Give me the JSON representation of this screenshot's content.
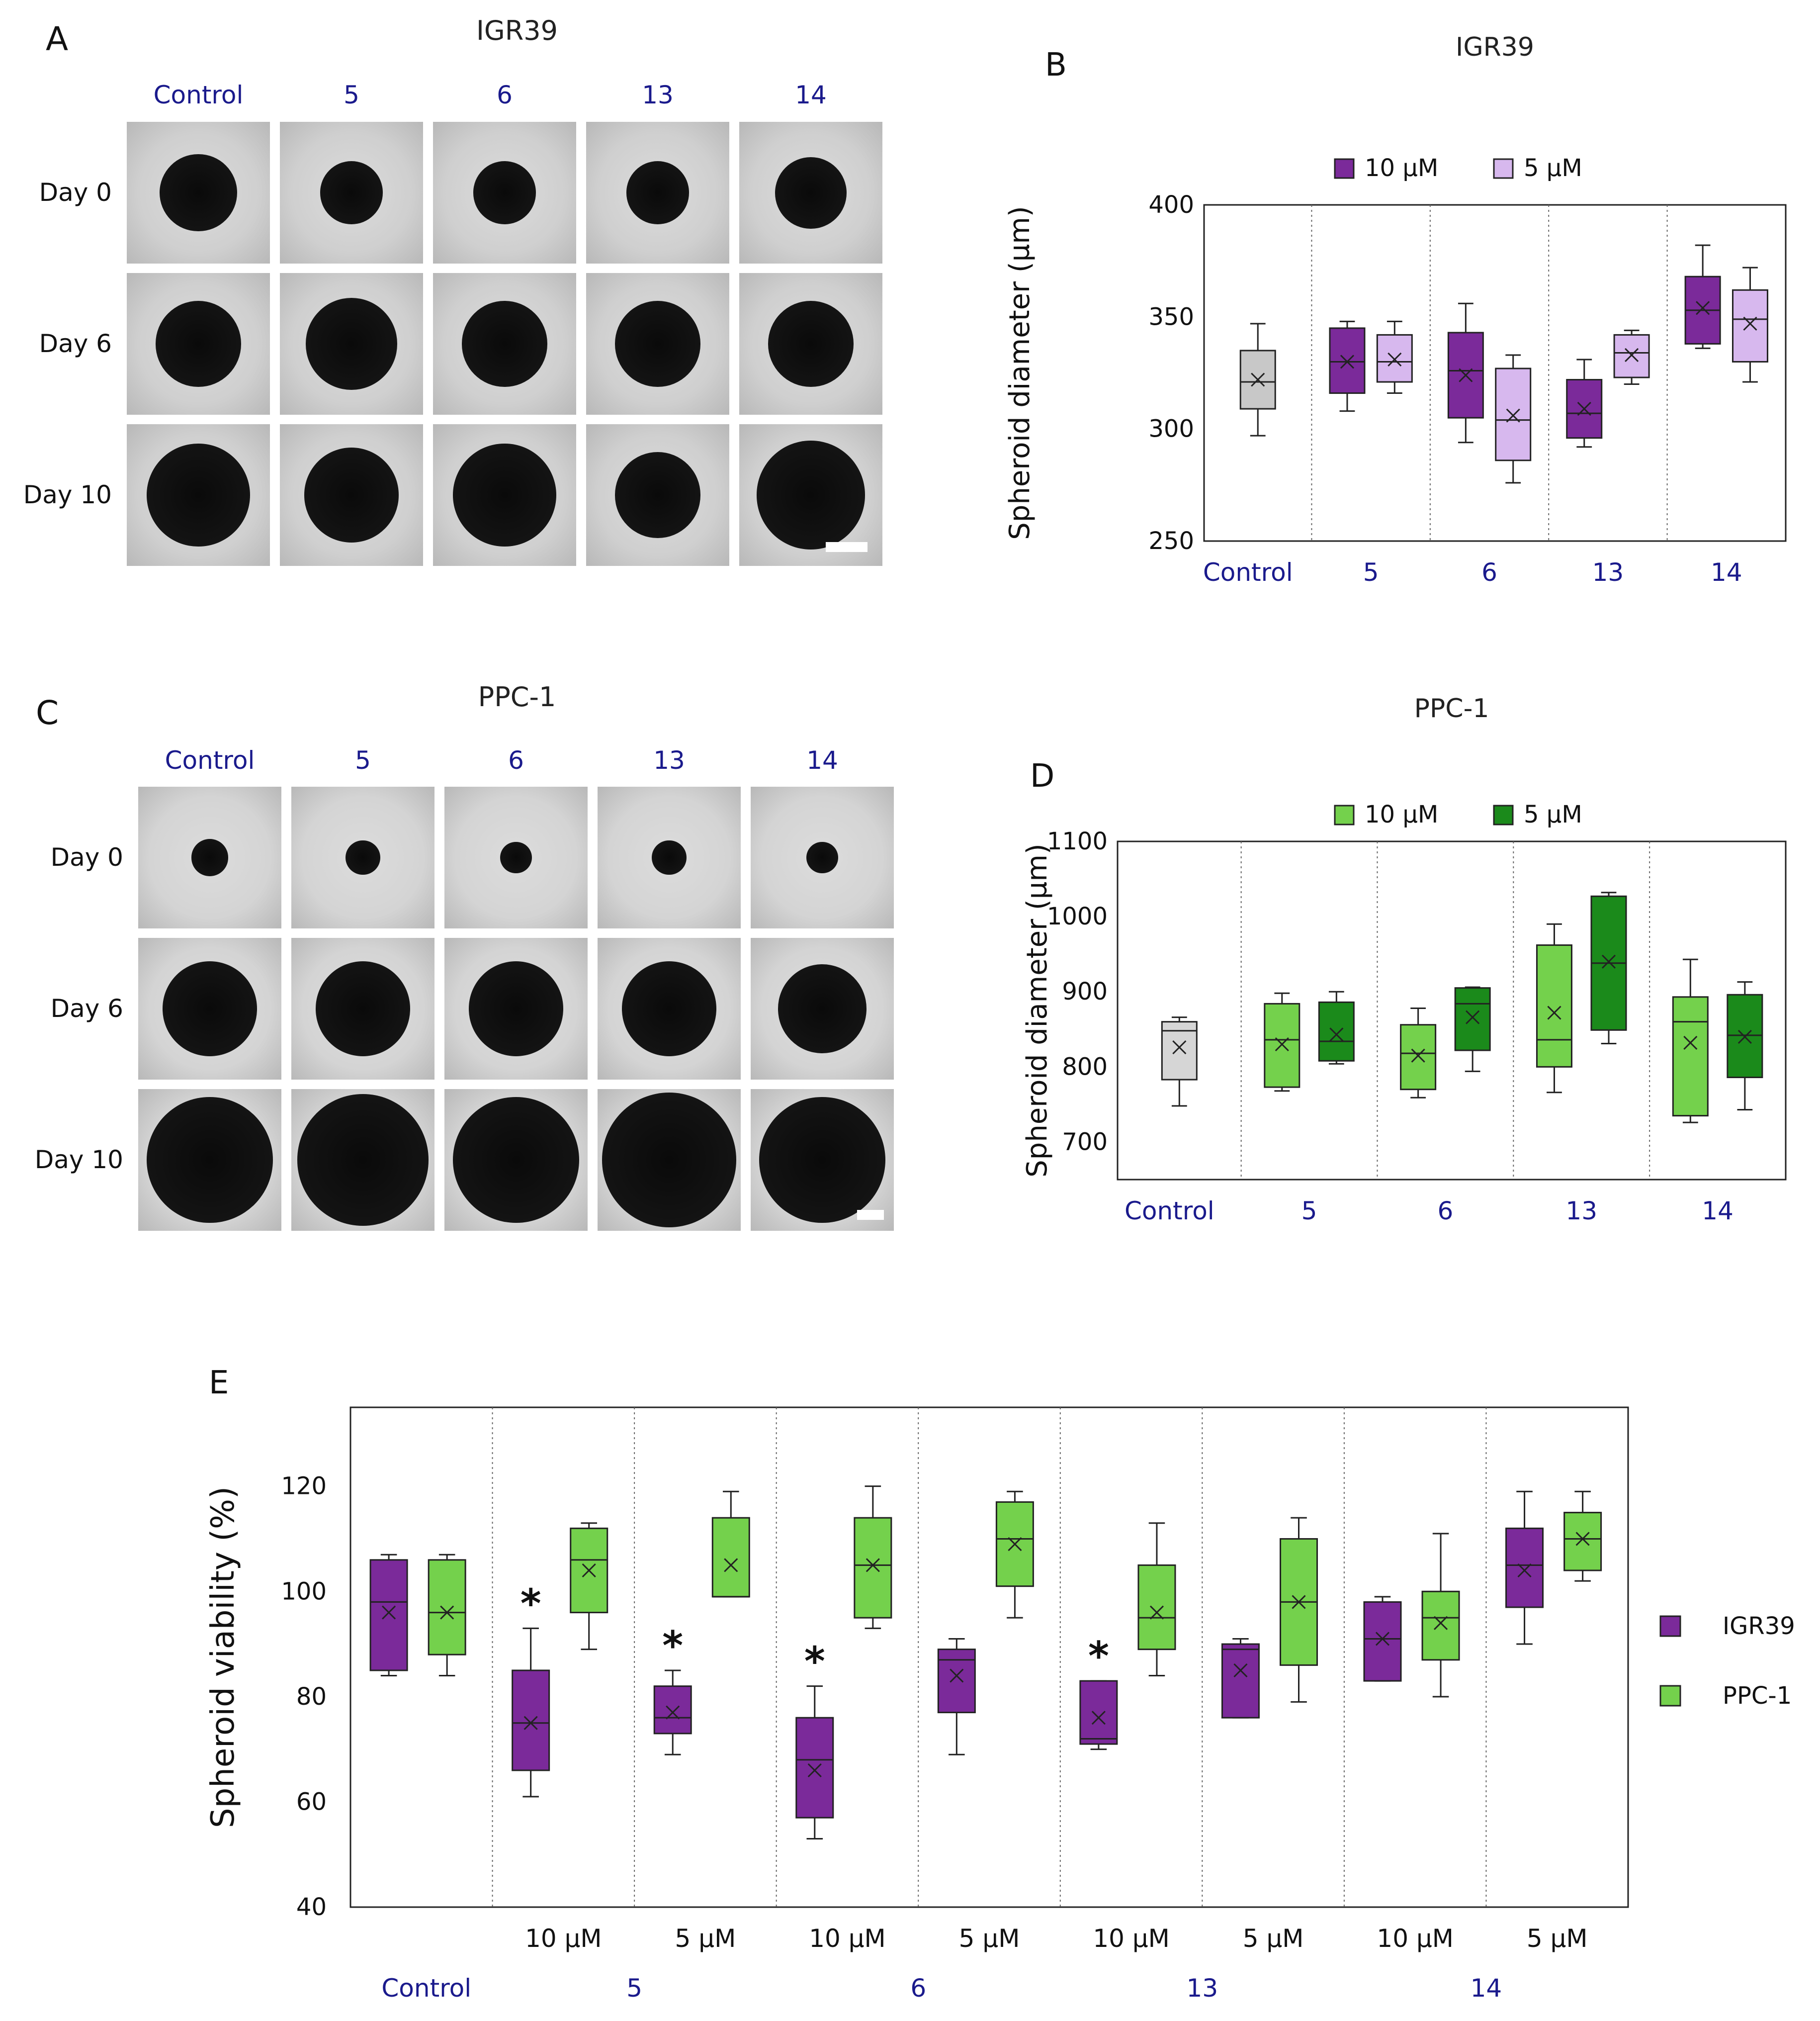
{
  "panelA": {
    "letter": "A",
    "title": "IGR39",
    "columns": [
      "Control",
      "5",
      "6",
      "13",
      "14"
    ],
    "rows": [
      "Day 0",
      "Day 6",
      "Day 10"
    ],
    "blob_radius": [
      [
        0.27,
        0.22,
        0.22,
        0.22,
        0.25
      ],
      [
        0.3,
        0.32,
        0.3,
        0.3,
        0.3
      ],
      [
        0.36,
        0.33,
        0.36,
        0.3,
        0.38
      ]
    ],
    "tile_bg": "#cfcfcf"
  },
  "panelC": {
    "letter": "C",
    "title": "PPC-1",
    "columns": [
      "Control",
      "5",
      "6",
      "13",
      "14"
    ],
    "rows": [
      "Day 0",
      "Day 6",
      "Day 10"
    ],
    "blob_radius": [
      [
        0.13,
        0.12,
        0.11,
        0.12,
        0.11
      ],
      [
        0.33,
        0.33,
        0.33,
        0.33,
        0.31
      ],
      [
        0.44,
        0.46,
        0.44,
        0.47,
        0.44
      ]
    ],
    "tile_bg": "#d4d4d4"
  },
  "chart_data": [
    {
      "id": "B",
      "letter": "B",
      "type": "box",
      "title": "IGR39",
      "ylabel": "Spheroid diameter (µm)",
      "ylim": [
        250,
        400
      ],
      "yticks": [
        250,
        300,
        350,
        400
      ],
      "groups": [
        "Control",
        "5",
        "6",
        "13",
        "14"
      ],
      "legend": [
        {
          "label": "10 µM",
          "color": "#7b2a9a"
        },
        {
          "label": "5 µM",
          "color": "#d7b8ee"
        }
      ],
      "control_color": "#c8c8c8",
      "boxes": [
        {
          "group": "Control",
          "series": "control",
          "min": 297,
          "q1": 309,
          "median": 321,
          "q3": 335,
          "max": 347,
          "mean": 322
        },
        {
          "group": "5",
          "series": "10 µM",
          "min": 308,
          "q1": 316,
          "median": 330,
          "q3": 345,
          "max": 348,
          "mean": 330
        },
        {
          "group": "5",
          "series": "5 µM",
          "min": 316,
          "q1": 321,
          "median": 330,
          "q3": 342,
          "max": 348,
          "mean": 331
        },
        {
          "group": "6",
          "series": "10 µM",
          "min": 294,
          "q1": 305,
          "median": 326,
          "q3": 343,
          "max": 356,
          "mean": 324
        },
        {
          "group": "6",
          "series": "5 µM",
          "min": 276,
          "q1": 286,
          "median": 304,
          "q3": 327,
          "max": 333,
          "mean": 306
        },
        {
          "group": "13",
          "series": "10 µM",
          "min": 292,
          "q1": 296,
          "median": 307,
          "q3": 322,
          "max": 331,
          "mean": 309
        },
        {
          "group": "13",
          "series": "5 µM",
          "min": 320,
          "q1": 323,
          "median": 334,
          "q3": 342,
          "max": 344,
          "mean": 333
        },
        {
          "group": "14",
          "series": "10 µM",
          "min": 336,
          "q1": 338,
          "median": 353,
          "q3": 368,
          "max": 382,
          "mean": 354
        },
        {
          "group": "14",
          "series": "5 µM",
          "min": 321,
          "q1": 330,
          "median": 349,
          "q3": 362,
          "max": 372,
          "mean": 347
        }
      ]
    },
    {
      "id": "D",
      "letter": "D",
      "type": "box",
      "title": "PPC-1",
      "ylabel": "Spheroid diameter (µm)",
      "ylim": [
        650,
        1100
      ],
      "yticks": [
        700,
        800,
        900,
        1000,
        1100
      ],
      "groups": [
        "Control",
        "5",
        "6",
        "13",
        "14"
      ],
      "legend": [
        {
          "label": "10 µM",
          "color": "#74d14c"
        },
        {
          "label": "5 µM",
          "color": "#1b8a1b"
        }
      ],
      "control_color": "#d6d6d6",
      "boxes": [
        {
          "group": "Control",
          "series": "control",
          "min": 748,
          "q1": 783,
          "median": 848,
          "q3": 860,
          "max": 866,
          "mean": 826
        },
        {
          "group": "5",
          "series": "10 µM",
          "min": 768,
          "q1": 773,
          "median": 836,
          "q3": 884,
          "max": 898,
          "mean": 830
        },
        {
          "group": "5",
          "series": "5 µM",
          "min": 804,
          "q1": 808,
          "median": 834,
          "q3": 886,
          "max": 900,
          "mean": 843
        },
        {
          "group": "6",
          "series": "10 µM",
          "min": 759,
          "q1": 770,
          "median": 818,
          "q3": 856,
          "max": 878,
          "mean": 815
        },
        {
          "group": "6",
          "series": "5 µM",
          "min": 794,
          "q1": 822,
          "median": 884,
          "q3": 905,
          "max": 906,
          "mean": 866
        },
        {
          "group": "13",
          "series": "10 µM",
          "min": 766,
          "q1": 800,
          "median": 836,
          "q3": 962,
          "max": 990,
          "mean": 872
        },
        {
          "group": "13",
          "series": "5 µM",
          "min": 831,
          "q1": 849,
          "median": 938,
          "q3": 1027,
          "max": 1032,
          "mean": 940
        },
        {
          "group": "14",
          "series": "10 µM",
          "min": 726,
          "q1": 735,
          "median": 860,
          "q3": 893,
          "max": 943,
          "mean": 832
        },
        {
          "group": "14",
          "series": "5 µM",
          "min": 743,
          "q1": 786,
          "median": 842,
          "q3": 896,
          "max": 913,
          "mean": 840
        }
      ]
    },
    {
      "id": "E",
      "letter": "E",
      "type": "box",
      "title": "",
      "ylabel": "Spheroid viability (%)",
      "ylim": [
        40,
        135
      ],
      "yticks": [
        40,
        60,
        80,
        100,
        120
      ],
      "groups": [
        "Control",
        "5",
        "6",
        "13",
        "14"
      ],
      "subgroups": [
        "",
        "10 µM",
        "5 µM",
        "10 µM",
        "5 µM",
        "10 µM",
        "5 µM",
        "10 µM",
        "5 µM"
      ],
      "legend": [
        {
          "label": "IGR39",
          "color": "#7b2a9a"
        },
        {
          "label": "PPC-1",
          "color": "#74d14c"
        }
      ],
      "significance_marker": "*",
      "boxes": [
        {
          "slot": 0,
          "series": "IGR39",
          "min": 84,
          "q1": 85,
          "median": 98,
          "q3": 106,
          "max": 107,
          "mean": 96,
          "sig": false
        },
        {
          "slot": 0,
          "series": "PPC-1",
          "min": 84,
          "q1": 88,
          "median": 96,
          "q3": 106,
          "max": 107,
          "mean": 96,
          "sig": false
        },
        {
          "slot": 1,
          "series": "IGR39",
          "min": 61,
          "q1": 66,
          "median": 75,
          "q3": 85,
          "max": 93,
          "mean": 75,
          "sig": true
        },
        {
          "slot": 1,
          "series": "PPC-1",
          "min": 89,
          "q1": 96,
          "median": 106,
          "q3": 112,
          "max": 113,
          "mean": 104,
          "sig": false
        },
        {
          "slot": 2,
          "series": "IGR39",
          "min": 69,
          "q1": 73,
          "median": 76,
          "q3": 82,
          "max": 85,
          "mean": 77,
          "sig": true
        },
        {
          "slot": 2,
          "series": "PPC-1",
          "min": 99,
          "q1": 99,
          "median": 99,
          "q3": 114,
          "max": 119,
          "mean": 105,
          "sig": false
        },
        {
          "slot": 3,
          "series": "IGR39",
          "min": 53,
          "q1": 57,
          "median": 68,
          "q3": 76,
          "max": 82,
          "mean": 66,
          "sig": true
        },
        {
          "slot": 3,
          "series": "PPC-1",
          "min": 93,
          "q1": 95,
          "median": 105,
          "q3": 114,
          "max": 120,
          "mean": 105,
          "sig": false
        },
        {
          "slot": 4,
          "series": "IGR39",
          "min": 69,
          "q1": 77,
          "median": 87,
          "q3": 89,
          "max": 91,
          "mean": 84,
          "sig": false
        },
        {
          "slot": 4,
          "series": "PPC-1",
          "min": 95,
          "q1": 101,
          "median": 110,
          "q3": 117,
          "max": 119,
          "mean": 109,
          "sig": false
        },
        {
          "slot": 5,
          "series": "IGR39",
          "min": 70,
          "q1": 71,
          "median": 72,
          "q3": 83,
          "max": 83,
          "mean": 76,
          "sig": true
        },
        {
          "slot": 5,
          "series": "PPC-1",
          "min": 84,
          "q1": 89,
          "median": 95,
          "q3": 105,
          "max": 113,
          "mean": 96,
          "sig": false
        },
        {
          "slot": 6,
          "series": "IGR39",
          "min": 76,
          "q1": 76,
          "median": 89,
          "q3": 90,
          "max": 91,
          "mean": 85,
          "sig": false
        },
        {
          "slot": 6,
          "series": "PPC-1",
          "min": 79,
          "q1": 86,
          "median": 98,
          "q3": 110,
          "max": 114,
          "mean": 98,
          "sig": false
        },
        {
          "slot": 7,
          "series": "IGR39",
          "min": 83,
          "q1": 83,
          "median": 91,
          "q3": 98,
          "max": 99,
          "mean": 91,
          "sig": false
        },
        {
          "slot": 7,
          "series": "PPC-1",
          "min": 80,
          "q1": 87,
          "median": 95,
          "q3": 100,
          "max": 111,
          "mean": 94,
          "sig": false
        },
        {
          "slot": 8,
          "series": "IGR39",
          "min": 90,
          "q1": 97,
          "median": 105,
          "q3": 112,
          "max": 119,
          "mean": 104,
          "sig": false
        },
        {
          "slot": 8,
          "series": "PPC-1",
          "min": 102,
          "q1": 104,
          "median": 110,
          "q3": 115,
          "max": 119,
          "mean": 110,
          "sig": false
        }
      ]
    }
  ]
}
